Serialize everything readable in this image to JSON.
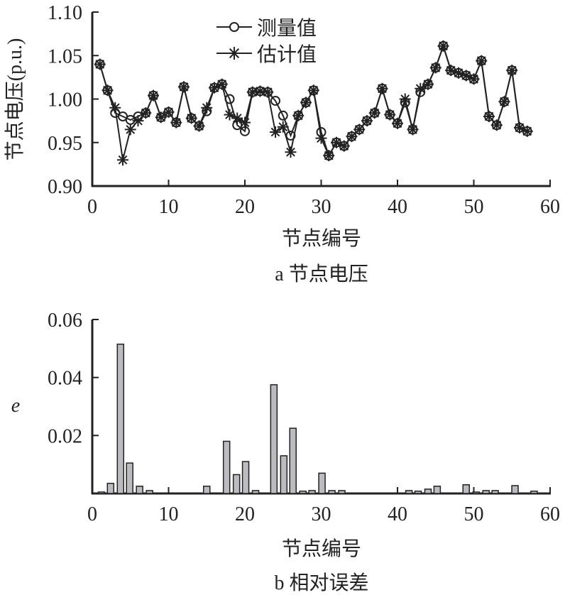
{
  "chart_data": [
    {
      "type": "line",
      "title": "a 节点电压",
      "xlabel": "节点编号",
      "ylabel": "节点电压(p.u.)",
      "xlim": [
        0,
        60
      ],
      "ylim": [
        0.9,
        1.1
      ],
      "xticks": [
        "0",
        "10",
        "20",
        "30",
        "40",
        "50",
        "60"
      ],
      "yticks": [
        "0.90",
        "0.95",
        "1.00",
        "1.05",
        "1.10"
      ],
      "legend_position": "top-center",
      "x": [
        1,
        2,
        3,
        4,
        5,
        6,
        7,
        8,
        9,
        10,
        11,
        12,
        13,
        14,
        15,
        16,
        17,
        18,
        19,
        20,
        21,
        22,
        23,
        24,
        25,
        26,
        27,
        28,
        29,
        30,
        31,
        32,
        33,
        34,
        35,
        36,
        37,
        38,
        39,
        40,
        41,
        42,
        43,
        44,
        45,
        46,
        47,
        48,
        49,
        50,
        51,
        52,
        53,
        54,
        55,
        56,
        57
      ],
      "series": [
        {
          "name": "测量值",
          "marker": "circle",
          "values": [
            1.04,
            1.01,
            0.984,
            0.98,
            0.976,
            0.98,
            0.984,
            1.004,
            0.979,
            0.985,
            0.973,
            1.014,
            0.978,
            0.969,
            0.986,
            1.013,
            1.017,
            1.0,
            0.97,
            0.963,
            1.008,
            1.009,
            1.008,
            0.998,
            0.981,
            0.958,
            0.981,
            0.996,
            1.01,
            0.962,
            0.935,
            0.95,
            0.946,
            0.957,
            0.965,
            0.975,
            0.984,
            1.012,
            0.982,
            0.972,
            0.996,
            0.965,
            1.008,
            1.017,
            1.036,
            1.061,
            1.033,
            1.03,
            1.027,
            1.023,
            1.044,
            0.98,
            0.97,
            0.997,
            1.033,
            0.967,
            0.963
          ]
        },
        {
          "name": "估计值",
          "marker": "asterisk",
          "values": [
            1.04,
            1.01,
            0.99,
            0.93,
            0.965,
            0.975,
            0.984,
            1.004,
            0.979,
            0.985,
            0.973,
            1.014,
            0.978,
            0.969,
            0.99,
            1.013,
            1.017,
            0.982,
            0.978,
            0.973,
            1.008,
            1.009,
            1.008,
            0.962,
            0.968,
            0.939,
            0.981,
            0.996,
            1.01,
            0.955,
            0.935,
            0.95,
            0.946,
            0.957,
            0.965,
            0.975,
            0.984,
            1.012,
            0.982,
            0.972,
            1.0,
            0.965,
            1.012,
            1.017,
            1.036,
            1.061,
            1.033,
            1.03,
            1.027,
            1.023,
            1.044,
            0.98,
            0.97,
            0.997,
            1.033,
            0.967,
            0.963
          ]
        }
      ]
    },
    {
      "type": "bar",
      "title": "b 相对误差",
      "xlabel": "节点编号",
      "ylabel": "e",
      "xlim": [
        0,
        60
      ],
      "ylim": [
        0,
        0.06
      ],
      "xticks": [
        "0",
        "10",
        "20",
        "30",
        "40",
        "50",
        "60"
      ],
      "yticks": [
        "0.02",
        "0.04",
        "0.06"
      ],
      "x": [
        1.2,
        2.4,
        3.7,
        4.9,
        6.2,
        7.5,
        15,
        17.6,
        18.9,
        20.1,
        21.4,
        23.8,
        25.1,
        26.3,
        27.6,
        28.8,
        30.1,
        31.4,
        32.7,
        41.5,
        42.7,
        44,
        45.2,
        49,
        50.3,
        51.6,
        52.8,
        55.4,
        57.9
      ],
      "values": [
        0.0005,
        0.0035,
        0.0515,
        0.0105,
        0.0025,
        0.001,
        0.0025,
        0.018,
        0.0065,
        0.011,
        0.001,
        0.0375,
        0.013,
        0.0225,
        0.0008,
        0.001,
        0.007,
        0.001,
        0.001,
        0.001,
        0.0008,
        0.0015,
        0.0025,
        0.003,
        0.0005,
        0.001,
        0.001,
        0.0027,
        0.0008
      ],
      "bar_color": "#bcbcc0"
    }
  ]
}
